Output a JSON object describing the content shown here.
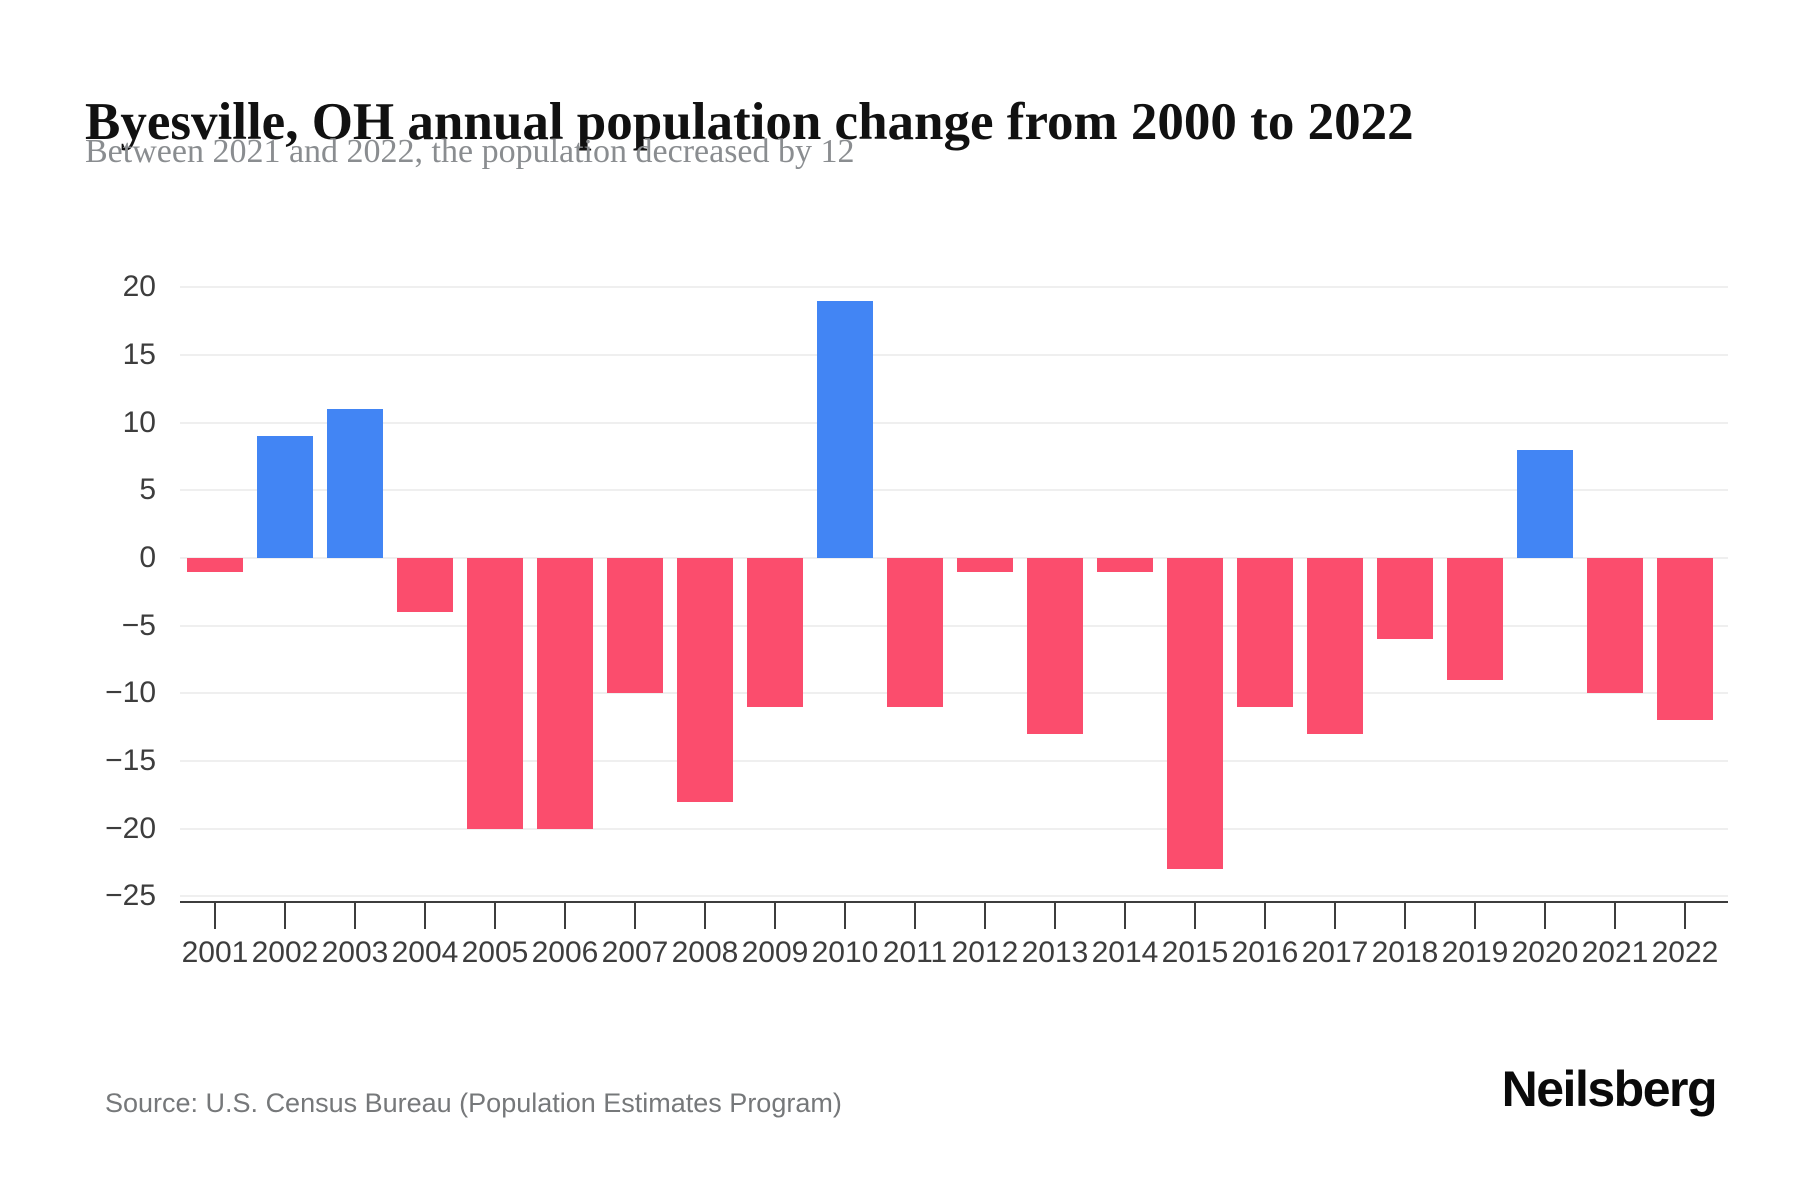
{
  "page": {
    "title": "Byesville, OH annual population change from 2000 to 2022",
    "subtitle": "Between 2021 and 2022, the population decreased by 12",
    "source": "Source: U.S. Census Bureau (Population Estimates Program)",
    "brand": "Neilsberg"
  },
  "colors": {
    "positive_bar": "#4285f4",
    "negative_bar": "#fb4d6d",
    "gridline": "#efefef",
    "axis": "#3d3d3d",
    "tick_label": "#3d3d3d",
    "title": "#111111",
    "subtitle": "#8a8d90",
    "source": "#76787a",
    "brand": "#0a0a0a",
    "background": "#ffffff"
  },
  "chart_data": {
    "type": "bar",
    "title": "Byesville, OH annual population change from 2000 to 2022",
    "subtitle": "Between 2021 and 2022, the population decreased by 12",
    "categories": [
      "2001",
      "2002",
      "2003",
      "2004",
      "2005",
      "2006",
      "2007",
      "2008",
      "2009",
      "2010",
      "2011",
      "2012",
      "2013",
      "2014",
      "2015",
      "2016",
      "2017",
      "2018",
      "2019",
      "2020",
      "2021",
      "2022"
    ],
    "values": [
      -1,
      9,
      11,
      -4,
      -20,
      -20,
      -10,
      -18,
      -11,
      19,
      -11,
      -1,
      -13,
      -1,
      -23,
      -11,
      -13,
      -6,
      -9,
      8,
      -10,
      -12
    ],
    "xlabel": "",
    "ylabel": "",
    "ylim": [
      -25,
      20
    ],
    "yticks": [
      20,
      15,
      10,
      5,
      0,
      -5,
      -10,
      -15,
      -20,
      -25
    ],
    "ytick_labels": [
      "20",
      "15",
      "10",
      "5",
      "0",
      "−5",
      "−10",
      "−15",
      "−20",
      "−25"
    ],
    "grid": true,
    "legend": false,
    "positive_color": "#4285f4",
    "negative_color": "#fb4d6d"
  }
}
